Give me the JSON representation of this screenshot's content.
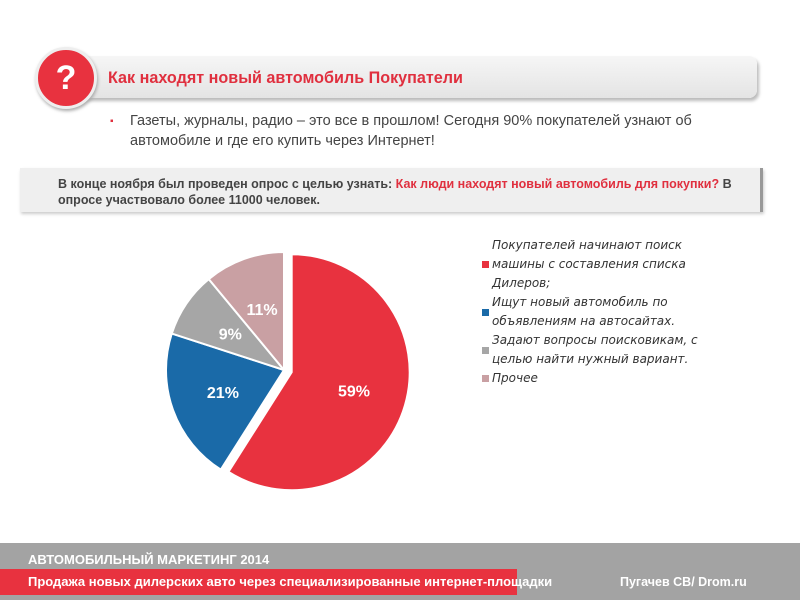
{
  "header": {
    "icon": "question-icon",
    "icon_glyph": "?",
    "title": "Как находят новый автомобиль Покупатели"
  },
  "bullet": {
    "marker": "▪",
    "text": "Газеты, журналы, радио – это все в прошлом! Сегодня 90% покупателей узнают об автомобиле и где его купить через Интернет!"
  },
  "survey": {
    "text_before": "В конце ноября был проведен опрос с целью узнать: ",
    "text_highlight": "Как люди находят новый автомобиль для покупки?",
    "text_after": "  В опросе участвовало более 11000 человек."
  },
  "chart_data": {
    "type": "pie",
    "title": "",
    "categories": [
      "Покупателей начинают поиск машины с составления списка Дилеров;",
      "Ищут новый автомобиль по объявлениям на автосайтах.",
      "Задают вопросы поисковикам, с целью найти нужный вариант.",
      "Прочее"
    ],
    "values": [
      59,
      21,
      9,
      11
    ],
    "labels": [
      "59%",
      "21%",
      "9%",
      "11%"
    ],
    "colors": [
      "#e8323f",
      "#1a6aa8",
      "#a6a6a6",
      "#c9a0a3"
    ],
    "exploded": [
      true,
      false,
      false,
      false
    ],
    "legend": "right"
  },
  "footer": {
    "line1": "АВТОМОБИЛЬНЫЙ МАРКЕТИНГ 2014",
    "line2": "Продажа новых дилерских авто через специализированные интернет-площадки",
    "author": "Пугачев СВ/ Drom.ru"
  }
}
